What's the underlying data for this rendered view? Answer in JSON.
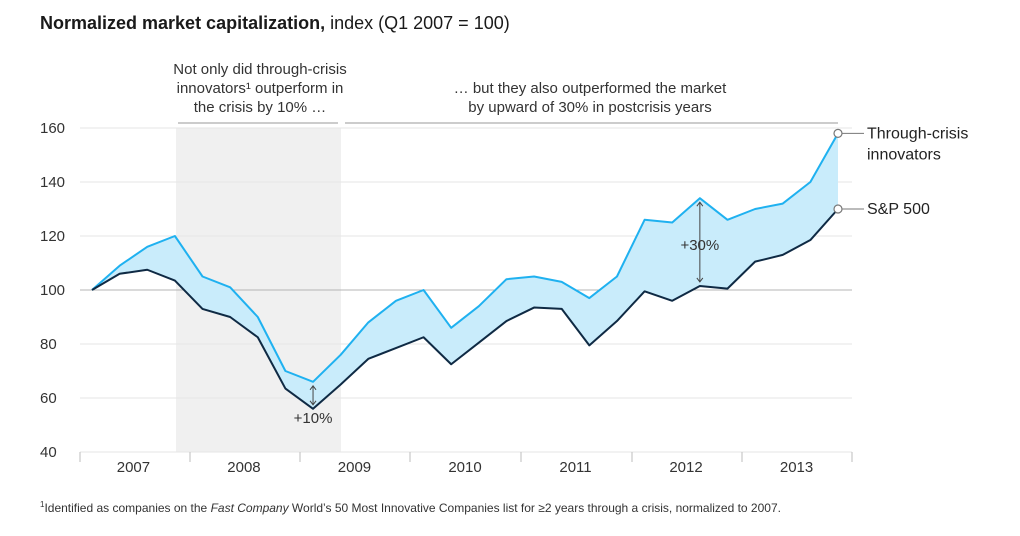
{
  "title": {
    "bold": "Normalized market capitalization,",
    "rest": " index (Q1 2007 = 100)"
  },
  "annotations": {
    "crisis": "Not only did through-crisis innovators¹ outperform in the crisis by 10% …",
    "crisis_lines": [
      "Not only did through-crisis",
      "innovators¹ outperform in",
      "the crisis by 10% …"
    ],
    "postcrisis_lines": [
      "… but they also outperformed the market",
      "by upward of 30% in postcrisis years"
    ],
    "gap_crisis": "+10%",
    "gap_postcrisis": "+30%"
  },
  "footnote": {
    "mark": "1",
    "part1": "Identified as companies on the ",
    "italic": "Fast Company",
    "part2": " World’s 50 Most Innovative Companies list for ≥2 years through a crisis, normalized to 2007."
  },
  "chart_data": {
    "type": "line",
    "title": "Normalized market capitalization, index (Q1 2007 = 100)",
    "x_ticks": [
      "2007",
      "2008",
      "2009",
      "2010",
      "2011",
      "2012",
      "2013"
    ],
    "x_unit": "quarter",
    "x": [
      "2007 Q1",
      "2007 Q2",
      "2007 Q3",
      "2007 Q4",
      "2008 Q1",
      "2008 Q2",
      "2008 Q3",
      "2008 Q4",
      "2009 Q1",
      "2009 Q2",
      "2009 Q3",
      "2009 Q4",
      "2010 Q1",
      "2010 Q2",
      "2010 Q3",
      "2010 Q4",
      "2011 Q1",
      "2011 Q2",
      "2011 Q3",
      "2011 Q4",
      "2012 Q1",
      "2012 Q2",
      "2012 Q3",
      "2012 Q4",
      "2013 Q1",
      "2013 Q2",
      "2013 Q3",
      "2013 Q4"
    ],
    "ylim": [
      40,
      160
    ],
    "y_ticks": [
      40,
      60,
      80,
      100,
      120,
      140,
      160
    ],
    "grid": true,
    "shaded_period": [
      "2007 Q4",
      "2009 Q1"
    ],
    "series": [
      {
        "name": "Through-crisis innovators",
        "color": "#1fb1f0",
        "values": [
          100,
          109,
          116,
          120,
          105,
          101,
          90,
          70,
          66,
          76,
          88,
          96,
          100,
          86,
          94,
          104,
          105,
          103,
          97,
          105,
          126,
          125,
          134,
          126,
          130,
          132,
          140,
          158
        ]
      },
      {
        "name": "S&P 500",
        "color": "#0f2a44",
        "values": [
          100,
          106,
          107.5,
          103.5,
          93,
          90,
          82.5,
          63.5,
          56,
          65,
          74.5,
          78.5,
          82.5,
          72.5,
          80.5,
          88.5,
          93.5,
          93,
          79.5,
          88.5,
          99.5,
          96,
          101.5,
          100.5,
          110.5,
          113,
          118.5,
          130
        ]
      }
    ],
    "legend": "right, at line ends"
  }
}
